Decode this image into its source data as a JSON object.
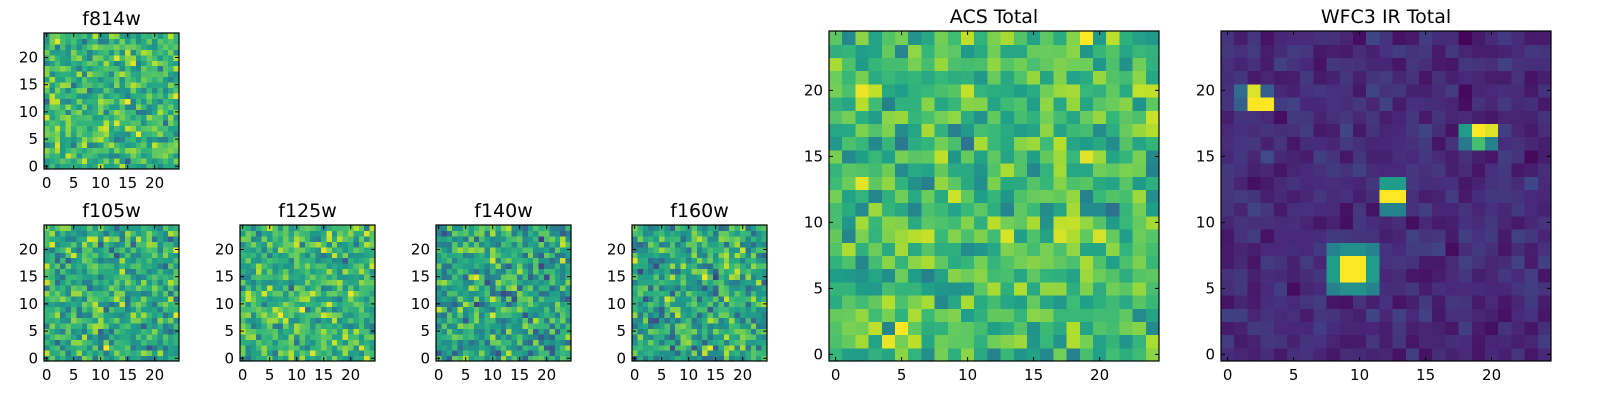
{
  "chart_data": [
    {
      "id": "f814w",
      "type": "heatmap",
      "title": "f814w",
      "colormap": "viridis",
      "xlim": [
        0,
        24
      ],
      "ylim": [
        0,
        24
      ],
      "xticks": [
        0,
        5,
        10,
        15,
        20
      ],
      "yticks": [
        0,
        5,
        10,
        15,
        20
      ],
      "value_range": [
        0,
        1
      ],
      "pattern": "noise",
      "base": 0.66,
      "amp": 0.3,
      "seed": 11,
      "spots": []
    },
    {
      "id": "f105w",
      "type": "heatmap",
      "title": "f105w",
      "colormap": "viridis",
      "xlim": [
        0,
        24
      ],
      "ylim": [
        0,
        24
      ],
      "xticks": [
        0,
        5,
        10,
        15,
        20
      ],
      "yticks": [
        0,
        5,
        10,
        15,
        20
      ],
      "value_range": [
        0,
        1
      ],
      "pattern": "noise",
      "base": 0.62,
      "amp": 0.32,
      "seed": 23,
      "spots": []
    },
    {
      "id": "f125w",
      "type": "heatmap",
      "title": "f125w",
      "colormap": "viridis",
      "xlim": [
        0,
        24
      ],
      "ylim": [
        0,
        24
      ],
      "xticks": [
        0,
        5,
        10,
        15,
        20
      ],
      "yticks": [
        0,
        5,
        10,
        15,
        20
      ],
      "value_range": [
        0,
        1
      ],
      "pattern": "noise",
      "base": 0.66,
      "amp": 0.3,
      "seed": 37,
      "spots": []
    },
    {
      "id": "f140w",
      "type": "heatmap",
      "title": "f140w",
      "colormap": "viridis",
      "xlim": [
        0,
        24
      ],
      "ylim": [
        0,
        24
      ],
      "xticks": [
        0,
        5,
        10,
        15,
        20
      ],
      "yticks": [
        0,
        5,
        10,
        15,
        20
      ],
      "value_range": [
        0,
        1
      ],
      "pattern": "noise",
      "base": 0.58,
      "amp": 0.34,
      "seed": 41,
      "spots": []
    },
    {
      "id": "f160w",
      "type": "heatmap",
      "title": "f160w",
      "colormap": "viridis",
      "xlim": [
        0,
        24
      ],
      "ylim": [
        0,
        24
      ],
      "xticks": [
        0,
        5,
        10,
        15,
        20
      ],
      "yticks": [
        0,
        5,
        10,
        15,
        20
      ],
      "value_range": [
        0,
        1
      ],
      "pattern": "noise",
      "base": 0.6,
      "amp": 0.34,
      "seed": 53,
      "spots": []
    },
    {
      "id": "acs-total",
      "type": "heatmap",
      "title": "ACS Total",
      "colormap": "viridis",
      "xlim": [
        0,
        24
      ],
      "ylim": [
        0,
        24
      ],
      "xticks": [
        0,
        5,
        10,
        15,
        20
      ],
      "yticks": [
        0,
        5,
        10,
        15,
        20
      ],
      "value_range": [
        0,
        1
      ],
      "pattern": "noise",
      "base": 0.7,
      "amp": 0.27,
      "seed": 67,
      "spots": []
    },
    {
      "id": "wfc3-ir-total",
      "type": "heatmap",
      "title": "WFC3 IR Total",
      "colormap": "viridis",
      "xlim": [
        0,
        24
      ],
      "ylim": [
        0,
        24
      ],
      "xticks": [
        0,
        5,
        10,
        15,
        20
      ],
      "yticks": [
        0,
        5,
        10,
        15,
        20
      ],
      "value_range": [
        0,
        1
      ],
      "pattern": "noise",
      "base": 0.12,
      "amp": 0.09,
      "seed": 79,
      "spots": [
        {
          "x": 2,
          "y": 20,
          "v": 0.95
        },
        {
          "x": 2,
          "y": 19,
          "v": 1.0
        },
        {
          "x": 3,
          "y": 19,
          "v": 1.0
        },
        {
          "x": 1,
          "y": 20,
          "v": 0.35
        },
        {
          "x": 3,
          "y": 20,
          "v": 0.3
        },
        {
          "x": 1,
          "y": 19,
          "v": 0.3
        },
        {
          "x": 9,
          "y": 6,
          "v": 1.0
        },
        {
          "x": 10,
          "y": 6,
          "v": 1.0
        },
        {
          "x": 9,
          "y": 7,
          "v": 1.0
        },
        {
          "x": 10,
          "y": 7,
          "v": 1.0
        },
        {
          "x": 8,
          "y": 5,
          "v": 0.45
        },
        {
          "x": 9,
          "y": 5,
          "v": 0.5
        },
        {
          "x": 10,
          "y": 5,
          "v": 0.5
        },
        {
          "x": 11,
          "y": 5,
          "v": 0.45
        },
        {
          "x": 8,
          "y": 8,
          "v": 0.45
        },
        {
          "x": 9,
          "y": 8,
          "v": 0.5
        },
        {
          "x": 10,
          "y": 8,
          "v": 0.5
        },
        {
          "x": 11,
          "y": 8,
          "v": 0.45
        },
        {
          "x": 8,
          "y": 6,
          "v": 0.55
        },
        {
          "x": 8,
          "y": 7,
          "v": 0.55
        },
        {
          "x": 11,
          "y": 6,
          "v": 0.55
        },
        {
          "x": 11,
          "y": 7,
          "v": 0.55
        },
        {
          "x": 12,
          "y": 13,
          "v": 0.55
        },
        {
          "x": 13,
          "y": 13,
          "v": 0.55
        },
        {
          "x": 12,
          "y": 12,
          "v": 1.0
        },
        {
          "x": 13,
          "y": 12,
          "v": 1.0
        },
        {
          "x": 12,
          "y": 11,
          "v": 0.45
        },
        {
          "x": 13,
          "y": 11,
          "v": 0.45
        },
        {
          "x": 18,
          "y": 17,
          "v": 0.55
        },
        {
          "x": 19,
          "y": 17,
          "v": 1.0
        },
        {
          "x": 20,
          "y": 17,
          "v": 0.95
        },
        {
          "x": 19,
          "y": 16,
          "v": 0.7
        },
        {
          "x": 20,
          "y": 16,
          "v": 0.45
        },
        {
          "x": 18,
          "y": 16,
          "v": 0.4
        }
      ]
    }
  ]
}
